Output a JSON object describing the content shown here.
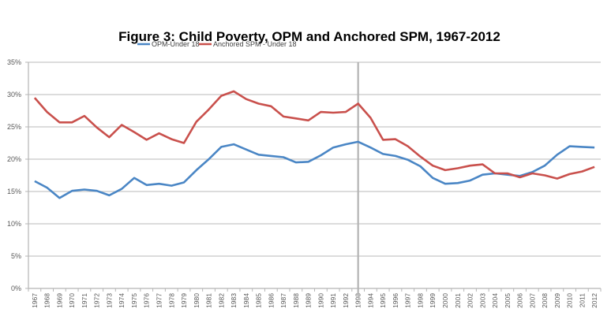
{
  "chart_data": {
    "type": "line",
    "title": "Figure 3: Child Poverty, OPM and Anchored SPM, 1967-2012",
    "xlabel": "",
    "ylabel": "",
    "ylim": [
      0,
      35
    ],
    "y_ticks": [
      "0%",
      "5%",
      "10%",
      "15%",
      "20%",
      "25%",
      "30%",
      "35%"
    ],
    "y_tick_values": [
      0,
      5,
      10,
      15,
      20,
      25,
      30,
      35
    ],
    "grid": true,
    "legend_position": "top-center",
    "reference_line_year": "1993",
    "x": [
      "1967",
      "1968",
      "1969",
      "1970",
      "1971",
      "1972",
      "1973",
      "1974",
      "1975",
      "1976",
      "1977",
      "1978",
      "1979",
      "1980",
      "1981",
      "1982",
      "1983",
      "1984",
      "1985",
      "1986",
      "1987",
      "1988",
      "1989",
      "1990",
      "1991",
      "1992",
      "1993",
      "1994",
      "1995",
      "1996",
      "1997",
      "1998",
      "1999",
      "2000",
      "2001",
      "2002",
      "2003",
      "2004",
      "2005",
      "2006",
      "2007",
      "2008",
      "2009",
      "2010",
      "2011",
      "2012"
    ],
    "series": [
      {
        "name": "OPM-Under 18",
        "color": "#4a86c5",
        "values": [
          16.6,
          15.6,
          14.0,
          15.1,
          15.3,
          15.1,
          14.4,
          15.4,
          17.1,
          16.0,
          16.2,
          15.9,
          16.4,
          18.3,
          20.0,
          21.9,
          22.3,
          21.5,
          20.7,
          20.5,
          20.3,
          19.5,
          19.6,
          20.6,
          21.8,
          22.3,
          22.7,
          21.8,
          20.8,
          20.5,
          19.9,
          18.9,
          17.1,
          16.2,
          16.3,
          16.7,
          17.6,
          17.8,
          17.6,
          17.4,
          18.0,
          19.0,
          20.7,
          22.0,
          21.9,
          21.8
        ]
      },
      {
        "name": "Anchored SPM - Under 18",
        "color": "#c9504c",
        "values": [
          29.5,
          27.3,
          25.7,
          25.7,
          26.7,
          24.9,
          23.4,
          25.3,
          24.2,
          23.0,
          24.0,
          23.1,
          22.5,
          25.8,
          27.7,
          29.8,
          30.5,
          29.3,
          28.6,
          28.2,
          26.6,
          26.3,
          26.0,
          27.3,
          27.2,
          27.3,
          28.6,
          26.4,
          23.0,
          23.1,
          22.0,
          20.4,
          19.0,
          18.3,
          18.6,
          19.0,
          19.2,
          17.8,
          17.8,
          17.2,
          17.8,
          17.5,
          17.0,
          17.7,
          18.1,
          18.8
        ]
      }
    ]
  }
}
